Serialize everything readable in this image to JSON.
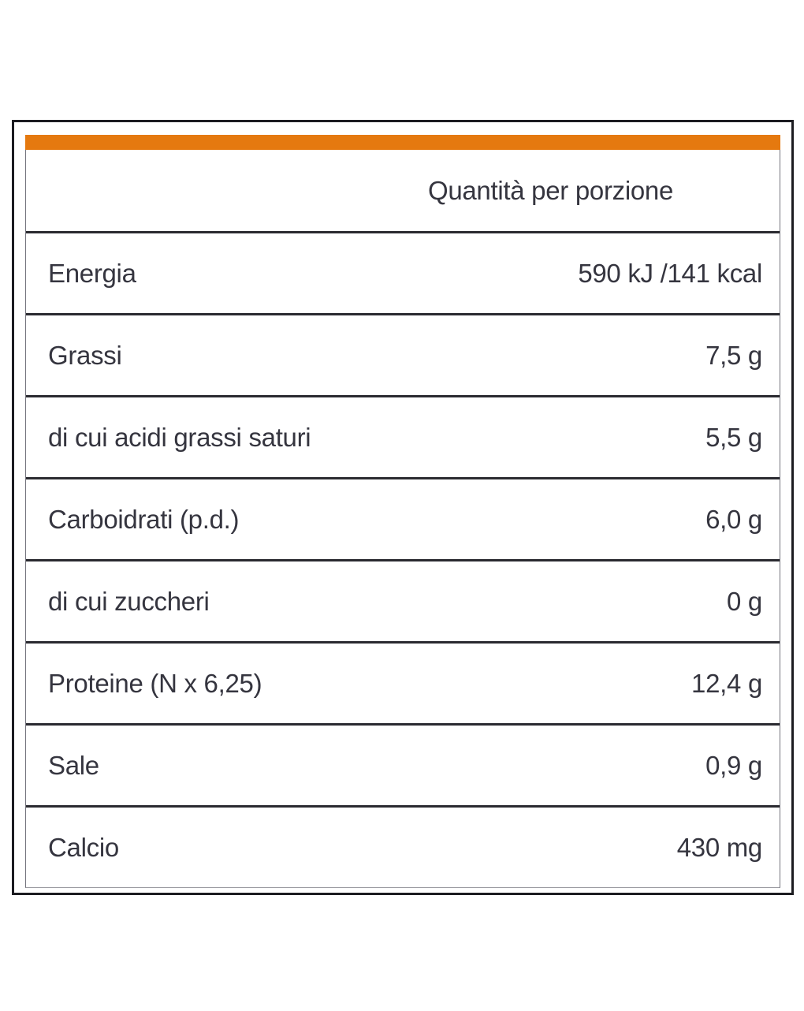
{
  "table": {
    "accent_color": "#E5790F",
    "header": "Quantità per porzione",
    "rows": [
      {
        "label": "Energia",
        "value": "590 kJ /141 kcal"
      },
      {
        "label": "Grassi",
        "value": "7,5 g"
      },
      {
        "label": "di cui acidi grassi saturi",
        "value": "5,5 g"
      },
      {
        "label": "Carboidrati (p.d.)",
        "value": "6,0 g"
      },
      {
        "label": "di cui zuccheri",
        "value": "0 g"
      },
      {
        "label": "Proteine (N x 6,25)",
        "value": "12,4 g"
      },
      {
        "label": "Sale",
        "value": "0,9 g"
      },
      {
        "label": "Calcio",
        "value": "430 mg"
      }
    ]
  }
}
